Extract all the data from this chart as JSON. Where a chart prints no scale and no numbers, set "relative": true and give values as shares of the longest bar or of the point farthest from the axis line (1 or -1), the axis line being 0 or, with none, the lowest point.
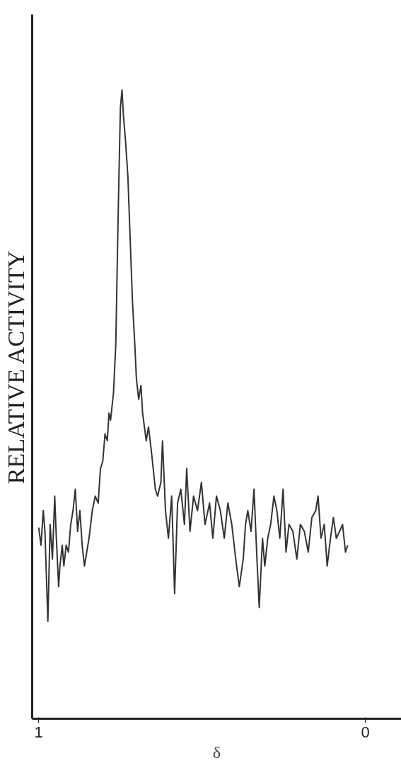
{
  "chart_data": {
    "type": "line",
    "relative": true,
    "ylabel": "RELATIVE ACTIVITY",
    "xlabel": "δ",
    "xlim": [
      1.02,
      -0.11
    ],
    "xticks": [
      1,
      0
    ],
    "grid": false,
    "marker": "none",
    "line_style": "solid",
    "series": [
      {
        "color": "#333333",
        "x": [
          1.0,
          0.993,
          0.986,
          0.981,
          0.972,
          0.965,
          0.958,
          0.951,
          0.946,
          0.939,
          0.935,
          0.928,
          0.923,
          0.916,
          0.909,
          0.902,
          0.895,
          0.888,
          0.881,
          0.874,
          0.867,
          0.86,
          0.853,
          0.846,
          0.836,
          0.827,
          0.818,
          0.811,
          0.804,
          0.797,
          0.79,
          0.785,
          0.78,
          0.771,
          0.764,
          0.757,
          0.75,
          0.745,
          0.741,
          0.734,
          0.727,
          0.72,
          0.713,
          0.706,
          0.701,
          0.694,
          0.687,
          0.682,
          0.671,
          0.664,
          0.654,
          0.643,
          0.636,
          0.626,
          0.621,
          0.612,
          0.603,
          0.593,
          0.584,
          0.575,
          0.565,
          0.554,
          0.547,
          0.537,
          0.526,
          0.514,
          0.502,
          0.491,
          0.477,
          0.467,
          0.456,
          0.444,
          0.432,
          0.421,
          0.409,
          0.397,
          0.386,
          0.374,
          0.367,
          0.36,
          0.35,
          0.341,
          0.332,
          0.325,
          0.315,
          0.308,
          0.299,
          0.29,
          0.28,
          0.271,
          0.262,
          0.252,
          0.243,
          0.234,
          0.222,
          0.21,
          0.199,
          0.187,
          0.175,
          0.164,
          0.152,
          0.145,
          0.136,
          0.126,
          0.117,
          0.107,
          0.098,
          0.089,
          0.079,
          0.07,
          0.061,
          0.054
        ],
        "values": [
          0.304,
          0.276,
          0.331,
          0.298,
          0.155,
          0.309,
          0.254,
          0.354,
          0.287,
          0.21,
          0.243,
          0.276,
          0.243,
          0.276,
          0.265,
          0.309,
          0.331,
          0.365,
          0.298,
          0.331,
          0.276,
          0.243,
          0.265,
          0.287,
          0.331,
          0.354,
          0.343,
          0.398,
          0.409,
          0.453,
          0.442,
          0.486,
          0.475,
          0.519,
          0.597,
          0.796,
          0.972,
          1.0,
          0.961,
          0.917,
          0.862,
          0.762,
          0.663,
          0.597,
          0.541,
          0.508,
          0.53,
          0.486,
          0.442,
          0.464,
          0.42,
          0.365,
          0.354,
          0.376,
          0.442,
          0.331,
          0.287,
          0.354,
          0.199,
          0.343,
          0.365,
          0.309,
          0.398,
          0.298,
          0.354,
          0.331,
          0.376,
          0.309,
          0.343,
          0.287,
          0.354,
          0.331,
          0.287,
          0.343,
          0.309,
          0.254,
          0.21,
          0.254,
          0.309,
          0.331,
          0.298,
          0.365,
          0.254,
          0.177,
          0.287,
          0.243,
          0.287,
          0.309,
          0.354,
          0.331,
          0.287,
          0.365,
          0.265,
          0.309,
          0.298,
          0.254,
          0.309,
          0.298,
          0.265,
          0.32,
          0.331,
          0.354,
          0.287,
          0.309,
          0.243,
          0.287,
          0.32,
          0.287,
          0.298,
          0.309,
          0.265,
          0.276
        ]
      }
    ]
  }
}
